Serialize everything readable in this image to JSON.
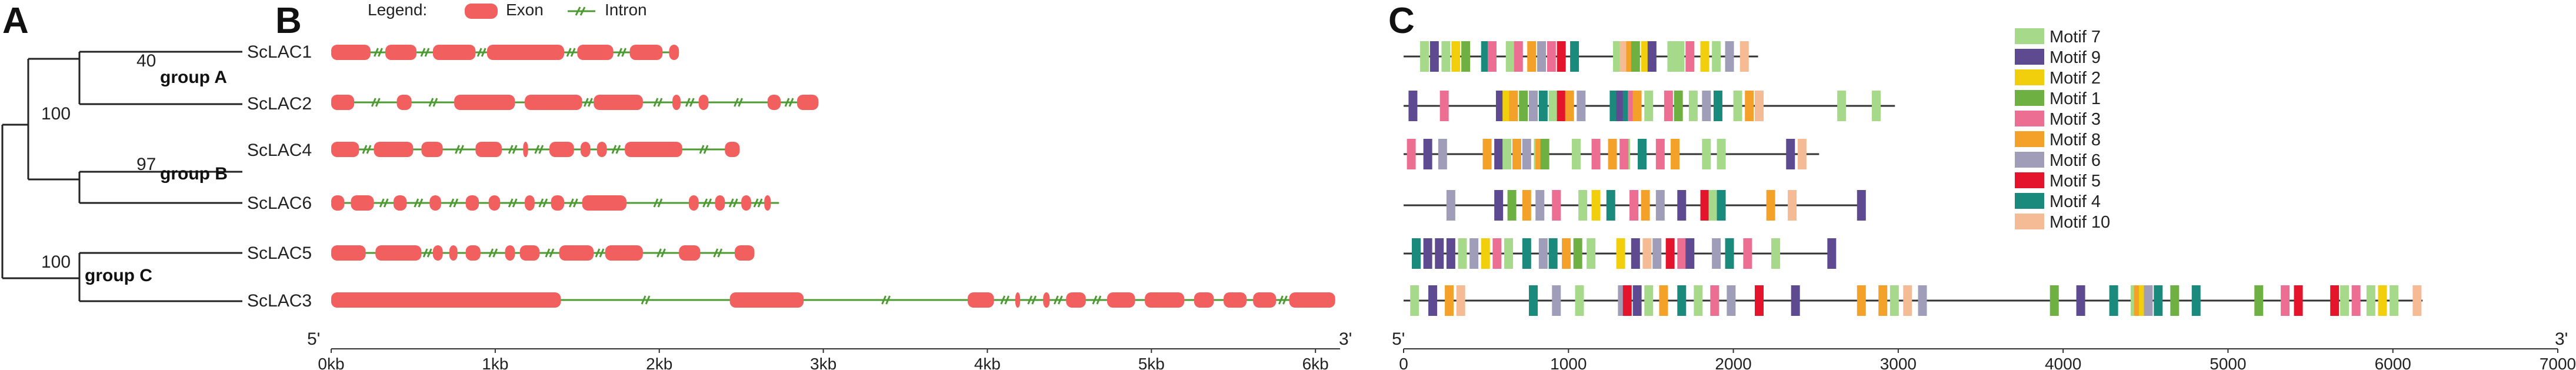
{
  "panels": {
    "a": "A",
    "b": "B",
    "c": "C"
  },
  "tree": {
    "bootstrap": [
      "40",
      "97",
      "100",
      "100"
    ],
    "groups": [
      "group A",
      "group B",
      "group C"
    ],
    "genes": [
      "ScLAC1",
      "ScLAC2",
      "ScLAC4",
      "ScLAC6",
      "ScLAC5",
      "ScLAC3"
    ]
  },
  "legend_b": {
    "title": "Legend:",
    "exon": "Exon",
    "intron": "Intron"
  },
  "colors": {
    "exon": "#f15f5f",
    "intron": "#4c9a32",
    "line": "#333333"
  },
  "gene_axis": {
    "end5": "5'",
    "end3": "3'",
    "ticks": [
      "0kb",
      "1kb",
      "2kb",
      "3kb",
      "4kb",
      "5kb",
      "6kb"
    ],
    "max_kb": 6.15
  },
  "genes": [
    {
      "name": "ScLAC1",
      "length_kb": 2.12,
      "exons": [
        [
          0,
          0.24
        ],
        [
          0.33,
          0.52
        ],
        [
          0.62,
          0.88
        ],
        [
          0.95,
          1.42
        ],
        [
          1.5,
          1.72
        ],
        [
          1.82,
          2.02
        ],
        [
          2.06,
          2.12
        ]
      ]
    },
    {
      "name": "ScLAC2",
      "length_kb": 2.97,
      "exons": [
        [
          0,
          0.14
        ],
        [
          0.4,
          0.49
        ],
        [
          0.75,
          1.12
        ],
        [
          1.18,
          1.53
        ],
        [
          1.6,
          1.9
        ],
        [
          2.08,
          2.13
        ],
        [
          2.24,
          2.3
        ],
        [
          2.66,
          2.74
        ],
        [
          2.84,
          2.97
        ]
      ]
    },
    {
      "name": "ScLAC4",
      "length_kb": 2.49,
      "exons": [
        [
          0,
          0.17
        ],
        [
          0.26,
          0.5
        ],
        [
          0.55,
          0.68
        ],
        [
          0.88,
          1.04
        ],
        [
          1.17,
          1.2
        ],
        [
          1.33,
          1.48
        ],
        [
          1.52,
          1.58
        ],
        [
          1.62,
          1.68
        ],
        [
          1.79,
          2.14
        ],
        [
          2.4,
          2.49
        ]
      ]
    },
    {
      "name": "ScLAC6",
      "length_kb": 2.73,
      "exons": [
        [
          0,
          0.08
        ],
        [
          0.12,
          0.26
        ],
        [
          0.38,
          0.46
        ],
        [
          0.6,
          0.67
        ],
        [
          0.82,
          0.9
        ],
        [
          0.96,
          1.03
        ],
        [
          1.18,
          1.24
        ],
        [
          1.34,
          1.42
        ],
        [
          1.53,
          1.8
        ],
        [
          2.18,
          2.24
        ],
        [
          2.34,
          2.4
        ],
        [
          2.5,
          2.56
        ],
        [
          2.64,
          2.68
        ]
      ]
    },
    {
      "name": "ScLAC5",
      "length_kb": 2.58,
      "exons": [
        [
          0,
          0.21
        ],
        [
          0.27,
          0.55
        ],
        [
          0.62,
          0.68
        ],
        [
          0.72,
          0.77
        ],
        [
          0.82,
          0.91
        ],
        [
          1.06,
          1.12
        ],
        [
          1.15,
          1.27
        ],
        [
          1.39,
          1.6
        ],
        [
          1.67,
          1.9
        ],
        [
          2.12,
          2.25
        ],
        [
          2.46,
          2.58
        ]
      ]
    },
    {
      "name": "ScLAC3",
      "length_kb": 6.12,
      "exons": [
        [
          0,
          1.4
        ],
        [
          2.43,
          2.88
        ],
        [
          3.88,
          4.04
        ],
        [
          4.17,
          4.2
        ],
        [
          4.34,
          4.38
        ],
        [
          4.48,
          4.6
        ],
        [
          4.73,
          4.9
        ],
        [
          4.96,
          5.2
        ],
        [
          5.26,
          5.38
        ],
        [
          5.44,
          5.58
        ],
        [
          5.62,
          5.76
        ],
        [
          5.84,
          6.12
        ]
      ]
    }
  ],
  "motif_legend": [
    "Motif 7",
    "Motif 9",
    "Motif 2",
    "Motif 1",
    "Motif 3",
    "Motif 8",
    "Motif 6",
    "Motif 5",
    "Motif 4",
    "Motif 10"
  ],
  "motif_colors": {
    "Motif 7": "#a7d98a",
    "Motif 9": "#5d4a91",
    "Motif 2": "#f2cf0c",
    "Motif 1": "#6fb043",
    "Motif 3": "#ec6e92",
    "Motif 8": "#f4a12a",
    "Motif 6": "#a09db8",
    "Motif 5": "#e4142d",
    "Motif 4": "#1a8a7d",
    "Motif 10": "#f5bb94"
  },
  "motif_axis": {
    "end5": "5'",
    "end3": "3'",
    "ticks": [
      "0",
      "1000",
      "2000",
      "3000",
      "4000",
      "5000",
      "6000",
      "7000"
    ],
    "max": 7000
  },
  "proteins": [
    {
      "name": "ScLAC1",
      "length": 2150,
      "motifs": [
        {
          "m": "Motif 7",
          "p": 100
        },
        {
          "m": "Motif 9",
          "p": 160
        },
        {
          "m": "Motif 7",
          "p": 230
        },
        {
          "m": "Motif 2",
          "p": 290
        },
        {
          "m": "Motif 1",
          "p": 350
        },
        {
          "m": "Motif 4",
          "p": 470
        },
        {
          "m": "Motif 3",
          "p": 510
        },
        {
          "m": "Motif 7",
          "p": 620
        },
        {
          "m": "Motif 3",
          "p": 670
        },
        {
          "m": "Motif 8",
          "p": 750
        },
        {
          "m": "Motif 6",
          "p": 810
        },
        {
          "m": "Motif 3",
          "p": 870
        },
        {
          "m": "Motif 5",
          "p": 930
        },
        {
          "m": "Motif 4",
          "p": 1010
        },
        {
          "m": "Motif 7",
          "p": 1270
        },
        {
          "m": "Motif 10",
          "p": 1310
        },
        {
          "m": "Motif 8",
          "p": 1350
        },
        {
          "m": "Motif 1",
          "p": 1380
        },
        {
          "m": "Motif 2",
          "p": 1440
        },
        {
          "m": "Motif 9",
          "p": 1480
        },
        {
          "m": "Motif 7",
          "p": 1600
        },
        {
          "m": "Motif 7",
          "p": 1650
        },
        {
          "m": "Motif 3",
          "p": 1710
        },
        {
          "m": "Motif 2",
          "p": 1800
        },
        {
          "m": "Motif 7",
          "p": 1870
        },
        {
          "m": "Motif 6",
          "p": 1950
        },
        {
          "m": "Motif 10",
          "p": 2040
        }
      ]
    },
    {
      "name": "ScLAC2",
      "length": 2980,
      "motifs": [
        {
          "m": "Motif 9",
          "p": 30
        },
        {
          "m": "Motif 3",
          "p": 220
        },
        {
          "m": "Motif 9",
          "p": 560
        },
        {
          "m": "Motif 2",
          "p": 600
        },
        {
          "m": "Motif 8",
          "p": 640
        },
        {
          "m": "Motif 1",
          "p": 700
        },
        {
          "m": "Motif 6",
          "p": 760
        },
        {
          "m": "Motif 4",
          "p": 820
        },
        {
          "m": "Motif 7",
          "p": 880
        },
        {
          "m": "Motif 5",
          "p": 930
        },
        {
          "m": "Motif 8",
          "p": 980
        },
        {
          "m": "Motif 6",
          "p": 1050
        },
        {
          "m": "Motif 4",
          "p": 1250
        },
        {
          "m": "Motif 9",
          "p": 1290
        },
        {
          "m": "Motif 4",
          "p": 1330
        },
        {
          "m": "Motif 3",
          "p": 1360
        },
        {
          "m": "Motif 8",
          "p": 1390
        },
        {
          "m": "Motif 7",
          "p": 1460
        },
        {
          "m": "Motif 3",
          "p": 1580
        },
        {
          "m": "Motif 1",
          "p": 1640
        },
        {
          "m": "Motif 7",
          "p": 1730
        },
        {
          "m": "Motif 6",
          "p": 1810
        },
        {
          "m": "Motif 4",
          "p": 1880
        },
        {
          "m": "Motif 7",
          "p": 2000
        },
        {
          "m": "Motif 8",
          "p": 2070
        },
        {
          "m": "Motif 10",
          "p": 2130
        },
        {
          "m": "Motif 7",
          "p": 2630
        },
        {
          "m": "Motif 7",
          "p": 2840
        }
      ]
    },
    {
      "name": "ScLAC4",
      "length": 2520,
      "motifs": [
        {
          "m": "Motif 3",
          "p": 20
        },
        {
          "m": "Motif 9",
          "p": 120
        },
        {
          "m": "Motif 6",
          "p": 210
        },
        {
          "m": "Motif 8",
          "p": 480
        },
        {
          "m": "Motif 9",
          "p": 550
        },
        {
          "m": "Motif 7",
          "p": 600
        },
        {
          "m": "Motif 8",
          "p": 660
        },
        {
          "m": "Motif 6",
          "p": 720
        },
        {
          "m": "Motif 7",
          "p": 790
        },
        {
          "m": "Motif 8",
          "p": 800
        },
        {
          "m": "Motif 1",
          "p": 830
        },
        {
          "m": "Motif 7",
          "p": 1020
        },
        {
          "m": "Motif 3",
          "p": 1140
        },
        {
          "m": "Motif 8",
          "p": 1240
        },
        {
          "m": "Motif 7",
          "p": 1320
        },
        {
          "m": "Motif 3",
          "p": 1310
        },
        {
          "m": "Motif 4",
          "p": 1420
        },
        {
          "m": "Motif 3",
          "p": 1530
        },
        {
          "m": "Motif 8",
          "p": 1620
        },
        {
          "m": "Motif 7",
          "p": 1810
        },
        {
          "m": "Motif 7",
          "p": 1900
        },
        {
          "m": "Motif 9",
          "p": 2320
        },
        {
          "m": "Motif 10",
          "p": 2390
        }
      ]
    },
    {
      "name": "ScLAC6",
      "length": 2760,
      "motifs": [
        {
          "m": "Motif 6",
          "p": 260
        },
        {
          "m": "Motif 9",
          "p": 550
        },
        {
          "m": "Motif 1",
          "p": 630
        },
        {
          "m": "Motif 8",
          "p": 720
        },
        {
          "m": "Motif 6",
          "p": 800
        },
        {
          "m": "Motif 3",
          "p": 900
        },
        {
          "m": "Motif 7",
          "p": 1060
        },
        {
          "m": "Motif 2",
          "p": 1140
        },
        {
          "m": "Motif 4",
          "p": 1230
        },
        {
          "m": "Motif 3",
          "p": 1370
        },
        {
          "m": "Motif 8",
          "p": 1440
        },
        {
          "m": "Motif 6",
          "p": 1530
        },
        {
          "m": "Motif 9",
          "p": 1660
        },
        {
          "m": "Motif 5",
          "p": 1800
        },
        {
          "m": "Motif 7",
          "p": 1850
        },
        {
          "m": "Motif 4",
          "p": 1900
        },
        {
          "m": "Motif 8",
          "p": 2200
        },
        {
          "m": "Motif 10",
          "p": 2330
        },
        {
          "m": "Motif 9",
          "p": 2750
        }
      ]
    },
    {
      "name": "ScLAC5",
      "length": 2620,
      "motifs": [
        {
          "m": "Motif 4",
          "p": 50
        },
        {
          "m": "Motif 9",
          "p": 120
        },
        {
          "m": "Motif 9",
          "p": 190
        },
        {
          "m": "Motif 9",
          "p": 260
        },
        {
          "m": "Motif 7",
          "p": 330
        },
        {
          "m": "Motif 6",
          "p": 400
        },
        {
          "m": "Motif 2",
          "p": 470
        },
        {
          "m": "Motif 3",
          "p": 540
        },
        {
          "m": "Motif 7",
          "p": 610
        },
        {
          "m": "Motif 4",
          "p": 720
        },
        {
          "m": "Motif 6",
          "p": 820
        },
        {
          "m": "Motif 4",
          "p": 880
        },
        {
          "m": "Motif 8",
          "p": 960
        },
        {
          "m": "Motif 1",
          "p": 1030
        },
        {
          "m": "Motif 7",
          "p": 1110
        },
        {
          "m": "Motif 2",
          "p": 1290
        },
        {
          "m": "Motif 9",
          "p": 1380
        },
        {
          "m": "Motif 10",
          "p": 1450
        },
        {
          "m": "Motif 6",
          "p": 1510
        },
        {
          "m": "Motif 5",
          "p": 1590
        },
        {
          "m": "Motif 3",
          "p": 1660
        },
        {
          "m": "Motif 9",
          "p": 1710
        },
        {
          "m": "Motif 6",
          "p": 1870
        },
        {
          "m": "Motif 4",
          "p": 1950
        },
        {
          "m": "Motif 3",
          "p": 2060
        },
        {
          "m": "Motif 7",
          "p": 2230
        },
        {
          "m": "Motif 9",
          "p": 2570
        }
      ]
    },
    {
      "name": "ScLAC3",
      "length": 6180,
      "motifs": [
        {
          "m": "Motif 7",
          "p": 40
        },
        {
          "m": "Motif 9",
          "p": 150
        },
        {
          "m": "Motif 8",
          "p": 250
        },
        {
          "m": "Motif 10",
          "p": 320
        },
        {
          "m": "Motif 4",
          "p": 760
        },
        {
          "m": "Motif 6",
          "p": 900
        },
        {
          "m": "Motif 7",
          "p": 1040
        },
        {
          "m": "Motif 6",
          "p": 1300
        },
        {
          "m": "Motif 5",
          "p": 1330
        },
        {
          "m": "Motif 9",
          "p": 1390
        },
        {
          "m": "Motif 7",
          "p": 1460
        },
        {
          "m": "Motif 8",
          "p": 1550
        },
        {
          "m": "Motif 4",
          "p": 1660
        },
        {
          "m": "Motif 7",
          "p": 1760
        },
        {
          "m": "Motif 3",
          "p": 1860
        },
        {
          "m": "Motif 6",
          "p": 1960
        },
        {
          "m": "Motif 5",
          "p": 2130
        },
        {
          "m": "Motif 9",
          "p": 2350
        },
        {
          "m": "Motif 8",
          "p": 2750
        },
        {
          "m": "Motif 8",
          "p": 2880
        },
        {
          "m": "Motif 7",
          "p": 2950
        },
        {
          "m": "Motif 10",
          "p": 3030
        },
        {
          "m": "Motif 6",
          "p": 3120
        },
        {
          "m": "Motif 1",
          "p": 3920
        },
        {
          "m": "Motif 9",
          "p": 4080
        },
        {
          "m": "Motif 4",
          "p": 4280
        },
        {
          "m": "Motif 7",
          "p": 4410
        },
        {
          "m": "Motif 8",
          "p": 4430
        },
        {
          "m": "Motif 2",
          "p": 4460
        },
        {
          "m": "Motif 6",
          "p": 4490
        },
        {
          "m": "Motif 4",
          "p": 4550
        },
        {
          "m": "Motif 1",
          "p": 4650
        },
        {
          "m": "Motif 4",
          "p": 4780
        },
        {
          "m": "Motif 1",
          "p": 5160
        },
        {
          "m": "Motif 3",
          "p": 5320
        },
        {
          "m": "Motif 5",
          "p": 5400
        },
        {
          "m": "Motif 5",
          "p": 5620
        },
        {
          "m": "Motif 7",
          "p": 5680
        },
        {
          "m": "Motif 3",
          "p": 5750
        },
        {
          "m": "Motif 7",
          "p": 5840
        },
        {
          "m": "Motif 2",
          "p": 5910
        },
        {
          "m": "Motif 7",
          "p": 5980
        },
        {
          "m": "Motif 10",
          "p": 6120
        }
      ]
    }
  ]
}
